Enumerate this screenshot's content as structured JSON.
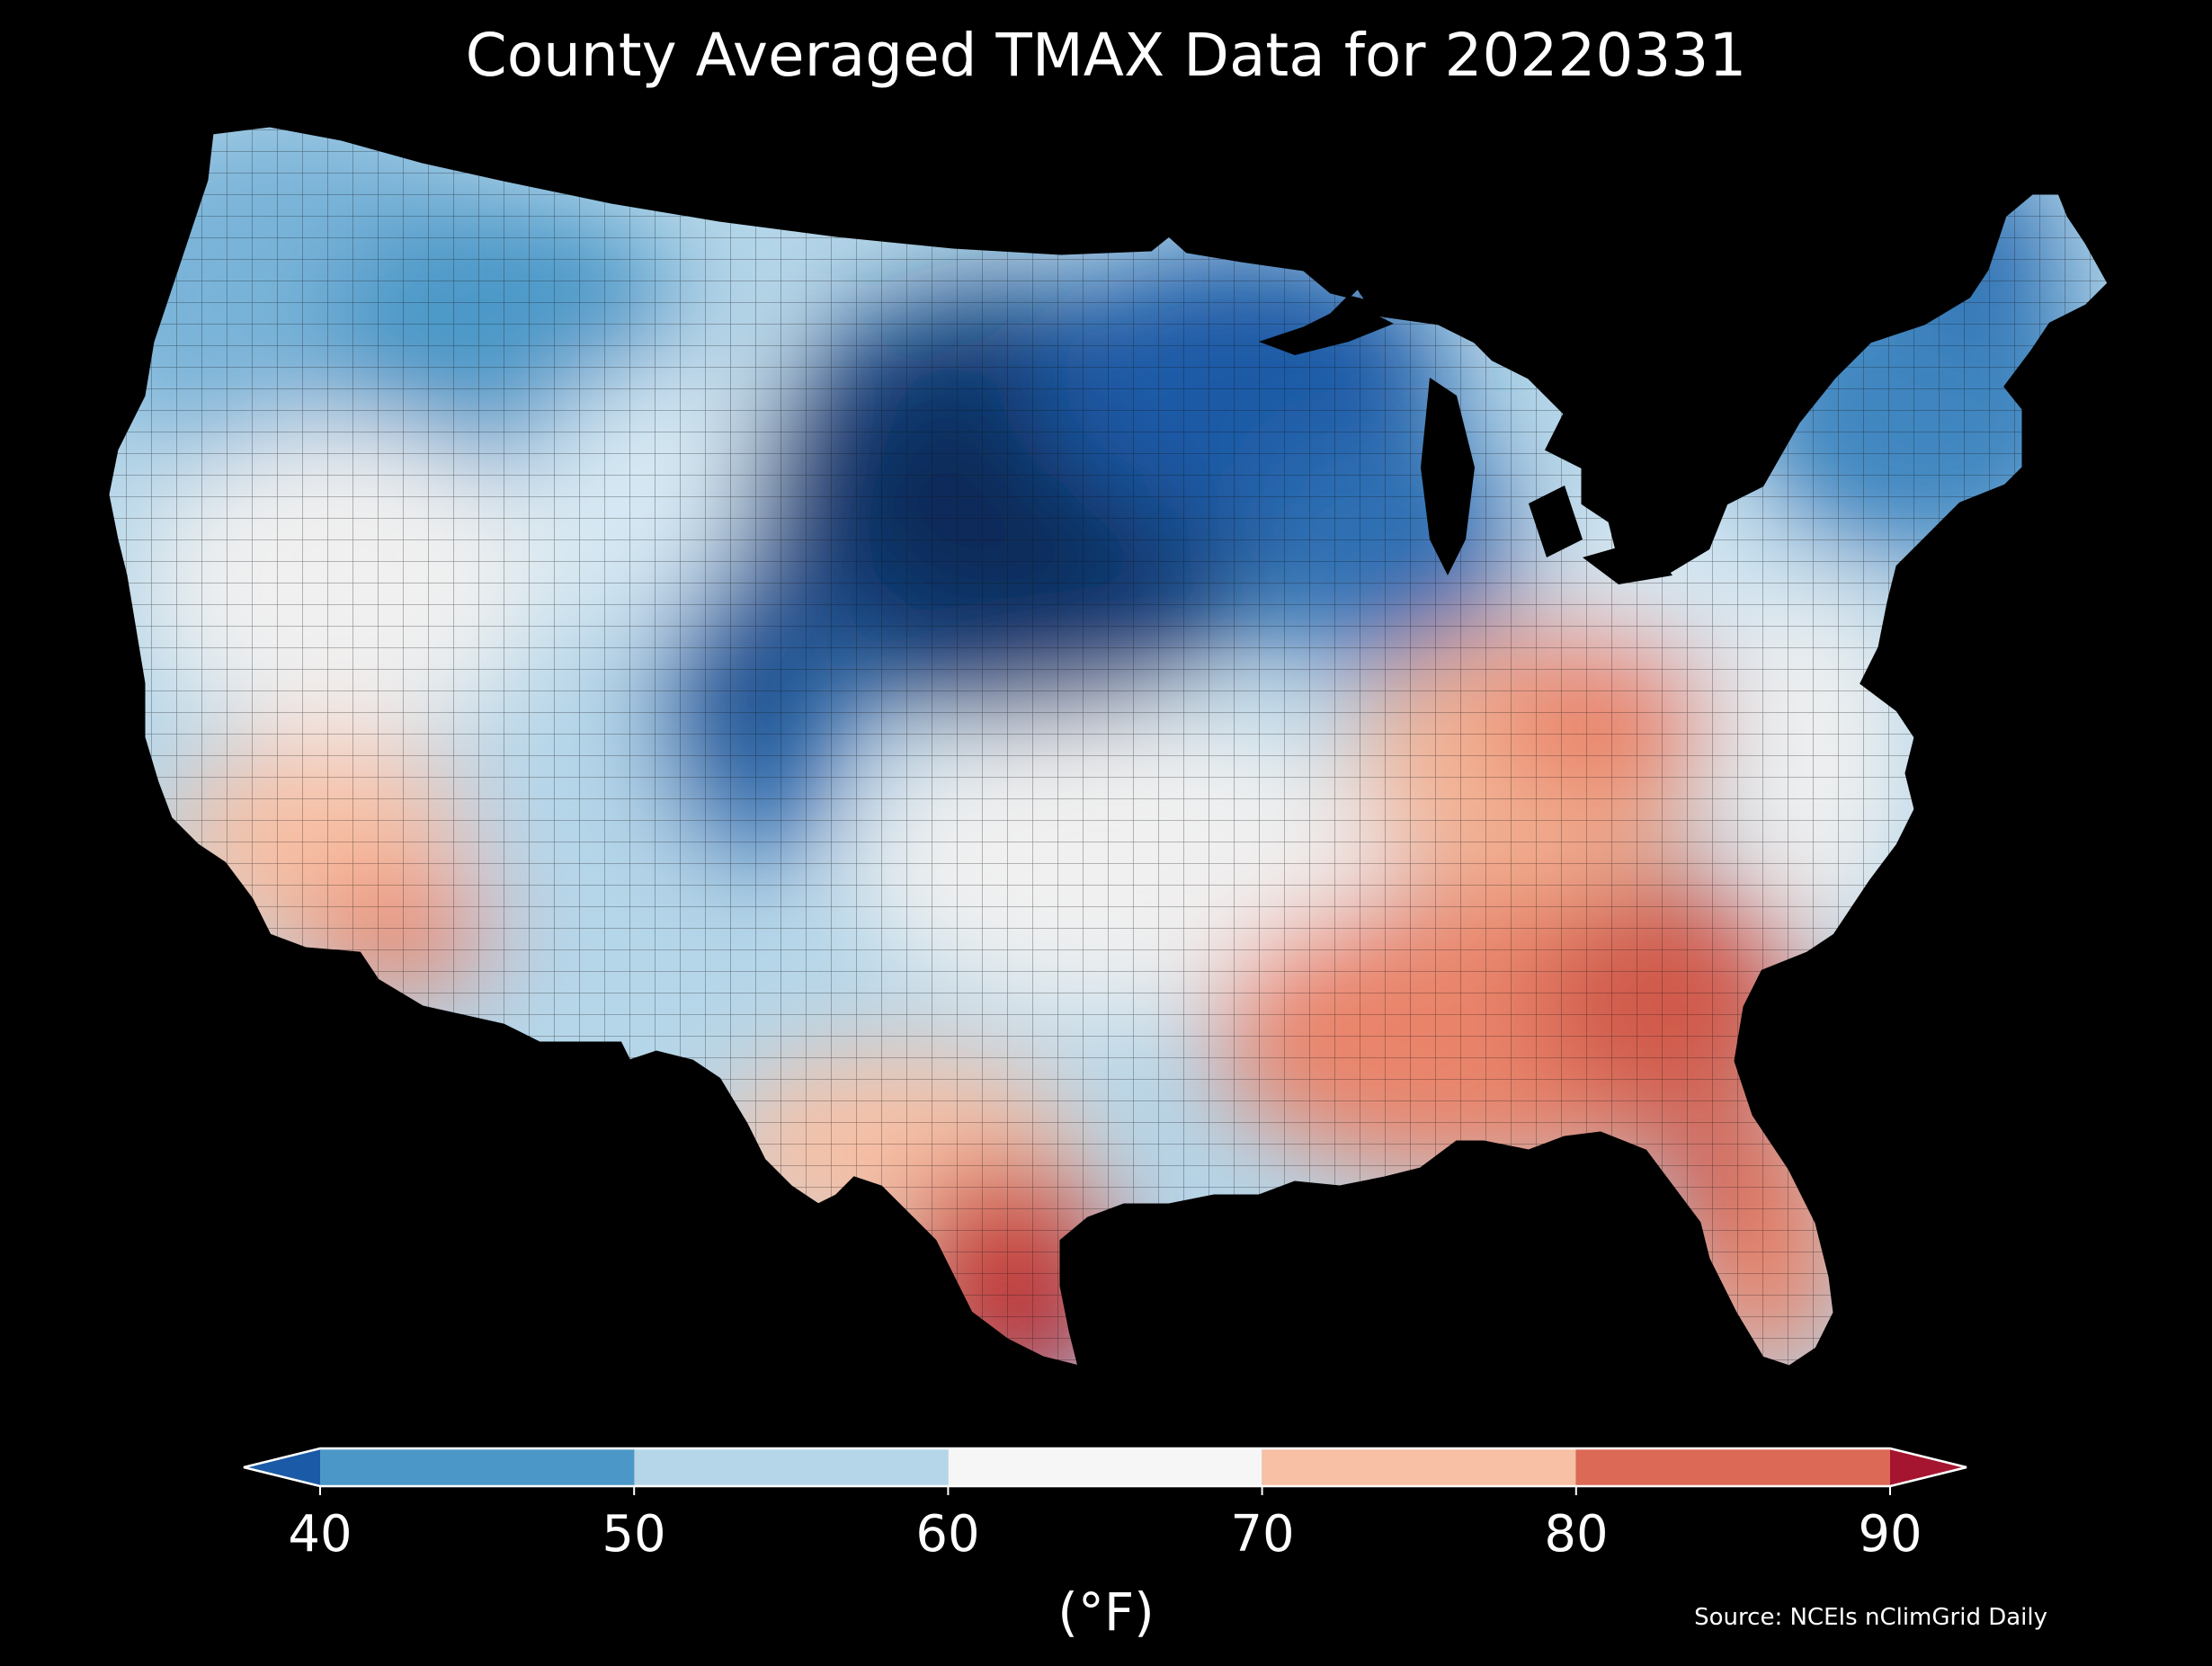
{
  "title": "County Averaged TMAX Data for 20220331",
  "source": "Source: NCEIs nClimGrid Daily",
  "colorbar": {
    "unit": "(°F)",
    "ticks": [
      "40",
      "50",
      "60",
      "70",
      "80",
      "90"
    ],
    "bins": [
      {
        "from": 40,
        "to": 50,
        "color": "#4b98c8"
      },
      {
        "from": 50,
        "to": 60,
        "color": "#b5d6e9"
      },
      {
        "from": 60,
        "to": 70,
        "color": "#f6f6f6"
      },
      {
        "from": 70,
        "to": 80,
        "color": "#f8c0a4"
      },
      {
        "from": 80,
        "to": 90,
        "color": "#dc6956"
      }
    ],
    "under_color": "#1b5aa6",
    "over_color": "#a51530"
  },
  "map": {
    "type": "choropleth",
    "region": "Contiguous United States",
    "unit": "county",
    "variable": "TMAX",
    "background": "#000000",
    "border_color": "#1a1a1a",
    "regional_pattern": [
      {
        "region": "Northern Plains / Upper Midwest",
        "band": "below 40"
      },
      {
        "region": "Colorado Rockies",
        "band": "below 40"
      },
      {
        "region": "Northeast / Great Lakes",
        "band": "40-50"
      },
      {
        "region": "Pacific Northwest / Northern Rockies",
        "band": "40-60"
      },
      {
        "region": "Great Basin / Four Corners",
        "band": "50-60"
      },
      {
        "region": "Southern Plains / Lower Midwest",
        "band": "60-70"
      },
      {
        "region": "Desert Southwest",
        "band": "70-80"
      },
      {
        "region": "Ohio Valley / Appalachians",
        "band": "70-80"
      },
      {
        "region": "Southeast / Florida",
        "band": "80-90"
      },
      {
        "region": "South Texas",
        "band": "above 90"
      }
    ]
  }
}
